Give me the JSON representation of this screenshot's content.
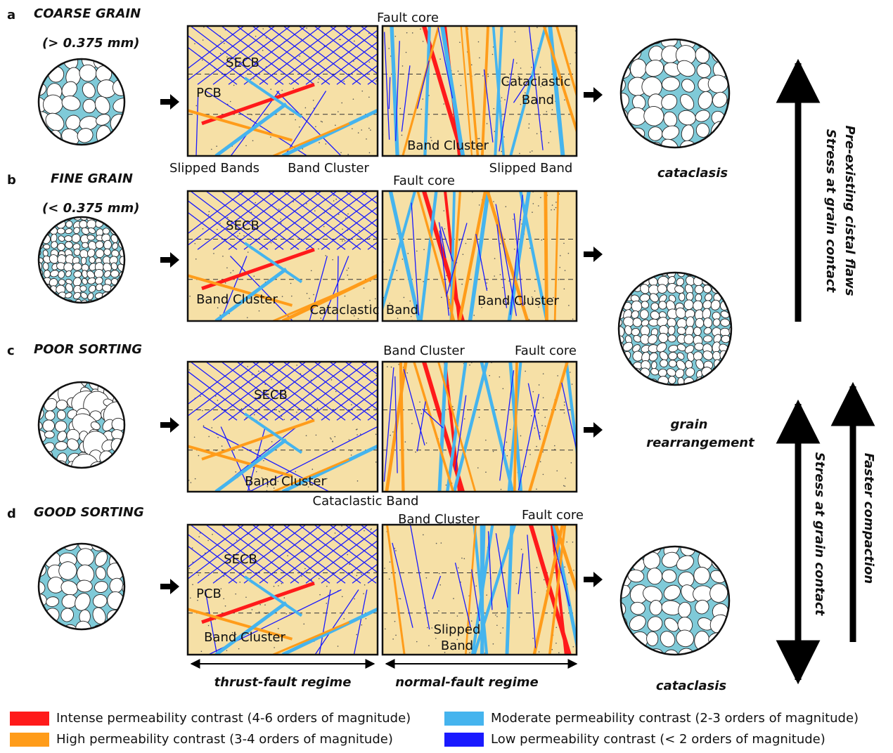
{
  "rows": [
    {
      "letter": "a",
      "title": "COARSE GRAIN",
      "subtitle": "(> 0.375 mm)",
      "labels": [
        "SECB",
        "PCB",
        "Slipped Bands",
        "Band Cluster",
        "Fault core",
        "Cataclastic",
        "Band",
        "Band Cluster",
        "Slipped Band"
      ]
    },
    {
      "letter": "b",
      "title": "FINE GRAIN",
      "subtitle": "(< 0.375 mm)",
      "labels": [
        "Fault core",
        "SECB",
        "Band Cluster",
        "Cataclastic",
        "Band",
        "Band Cluster"
      ]
    },
    {
      "letter": "c",
      "title": "POOR SORTING",
      "labels": [
        "Band Cluster",
        "Fault core",
        "SECB",
        "Band Cluster",
        "Cataclastic  Band"
      ]
    },
    {
      "letter": "d",
      "title": "GOOD SORTING",
      "labels": [
        "Band Cluster",
        "Fault core",
        "SECB",
        "PCB",
        "Band Cluster",
        "Slipped",
        "Band"
      ]
    }
  ],
  "outcomes": [
    "cataclasis",
    "grain",
    "rearrangement",
    "cataclasis"
  ],
  "arrow_texts": [
    "Stress at grain contact",
    "Pre-existing cistal flaws",
    "Stress at grain contact",
    "Faster compaction"
  ],
  "regimes": [
    "thrust-fault regime",
    "normal-fault regime"
  ],
  "legend": [
    {
      "label": "Intense permeability contrast (4-6 orders of magnitude)",
      "color": "#ff1a1a"
    },
    {
      "label": "High permeability contrast (3-4 orders of magnitude)",
      "color": "#ff9c1a"
    },
    {
      "label": "Moderate permeability contrast (2-3 orders of magnitude)",
      "color": "#45b4ee"
    },
    {
      "label": "Low permeability contrast (< 2 orders of magnitude)",
      "color": "#1a1aff"
    }
  ]
}
